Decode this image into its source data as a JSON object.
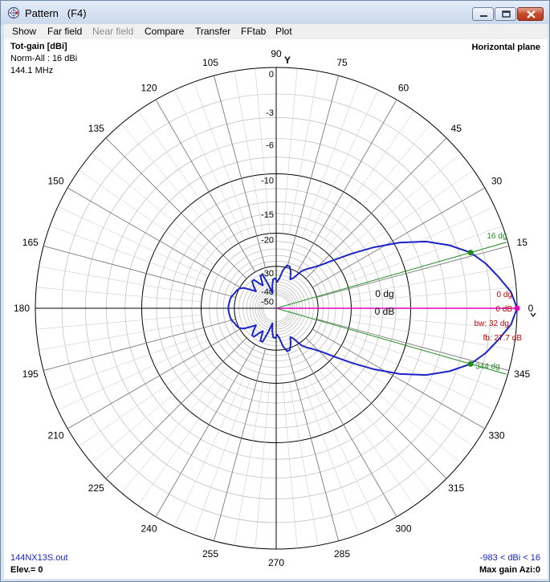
{
  "window": {
    "title": "Pattern   (F4)",
    "icon": "antenna-pattern-icon",
    "controls": [
      "minimize-icon",
      "maximize-icon",
      "close-icon"
    ]
  },
  "menu": [
    {
      "label": "Show",
      "enabled": true
    },
    {
      "label": "Far field",
      "enabled": true
    },
    {
      "label": "Near field",
      "enabled": false
    },
    {
      "label": "Compare",
      "enabled": true
    },
    {
      "label": "Transfer",
      "enabled": true
    },
    {
      "label": "FFtab",
      "enabled": true
    },
    {
      "label": "Plot",
      "enabled": true
    }
  ],
  "plot_info": {
    "top_left": [
      "Tot-gain [dBi]",
      "Norm-All : 16 dBi",
      "144.1 MHz"
    ],
    "top_right": "Horizontal plane",
    "bottom_left": [
      "144NX13S.out",
      "Elev.= 0"
    ],
    "bottom_right": [
      "-983 < dBi < 16",
      "Max gain Azi:0"
    ],
    "axis_label_y": "Y"
  },
  "polar": {
    "angle_labels": [
      "0",
      "15",
      "30",
      "45",
      "60",
      "75",
      "90",
      "105",
      "120",
      "135",
      "150",
      "165",
      "180",
      "195",
      "210",
      "225",
      "240",
      "255",
      "270",
      "285",
      "300",
      "315",
      "330",
      "345"
    ],
    "ring_levels_db": [
      "0",
      "-3",
      "-6",
      "-10",
      "-15",
      "-20",
      "-30",
      "-40",
      "-50"
    ],
    "colors": {
      "grid": "#8a8a8a",
      "pattern": "#1a24c8",
      "beamwidth_lines": "#1f8a1f",
      "max_marker": "#e000c0",
      "annotation_red": "#c00000",
      "annotation_green": "#1f8a1f",
      "axis": "#000000"
    }
  },
  "annotations": {
    "bw_upper": "16 dg",
    "bw_lower": "344 dg",
    "max_dir": "0 dg",
    "max_db": "0 dB",
    "beamwidth": "bw: 32 dg",
    "front_back": "fb: 27.7 dB",
    "center_dir": "0 dg",
    "center_db": "0 dB"
  },
  "chart_data": {
    "type": "polar",
    "title": "Horizontal plane",
    "quantity": "Tot-gain [dBi]",
    "normalization_dbi": 16,
    "frequency": "144.1 MHz",
    "max_gain_azimuth_deg": 0,
    "beamwidth_deg": 32,
    "beamwidth_edges_deg": [
      16,
      344
    ],
    "front_to_back_db": 27.7,
    "gain_range": "-983 < dBi < 16",
    "scale_levels_db": [
      0,
      -3,
      -6,
      -10,
      -15,
      -20,
      -30,
      -40,
      -50
    ],
    "pattern": {
      "azimuth_deg": [
        0,
        4,
        8,
        12,
        16,
        20,
        24,
        28,
        32,
        36,
        40,
        44,
        48,
        52,
        56,
        60,
        64,
        68,
        72,
        76,
        80,
        84,
        88,
        92,
        96,
        100,
        104,
        108,
        112,
        116,
        120,
        124,
        128,
        132,
        136,
        140,
        144,
        148,
        152,
        156,
        160,
        164,
        168,
        172,
        176,
        180
      ],
      "relative_db": [
        0,
        -0.4,
        -1.2,
        -2.0,
        -3.0,
        -4.6,
        -6.6,
        -9.3,
        -12.7,
        -16.4,
        -20.1,
        -23.2,
        -25.4,
        -27.0,
        -29.0,
        -33.0,
        -34.6,
        -31.3,
        -29.2,
        -29.1,
        -31.5,
        -35.8,
        -38.0,
        -35.8,
        -36.2,
        -40.4,
        -47.1,
        -39.5,
        -32.6,
        -32.5,
        -37.9,
        -36.0,
        -32.6,
        -32.6,
        -35.2,
        -38.0,
        -34.9,
        -31.5,
        -30.0,
        -29.4,
        -29.1,
        -28.5,
        -28.1,
        -28.0,
        -27.8,
        -27.7
      ]
    }
  }
}
